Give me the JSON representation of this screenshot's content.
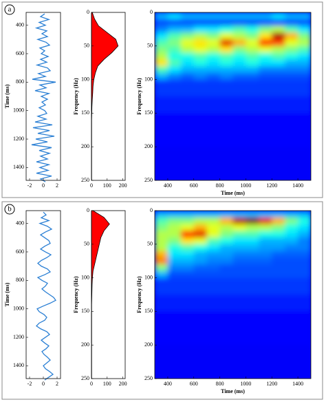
{
  "panels": [
    {
      "label": "a"
    },
    {
      "label": "b"
    }
  ],
  "chart_data": [
    {
      "type": "line",
      "ylabel": "Time (ms)",
      "color": "#2a7fd4",
      "time": [
        320,
        340,
        360,
        380,
        400,
        420,
        440,
        460,
        480,
        500,
        520,
        540,
        560,
        580,
        600,
        620,
        640,
        660,
        680,
        700,
        720,
        740,
        760,
        780,
        800,
        820,
        840,
        860,
        880,
        900,
        920,
        940,
        960,
        980,
        1000,
        1020,
        1040,
        1060,
        1080,
        1100,
        1120,
        1140,
        1160,
        1180,
        1200,
        1220,
        1240,
        1260,
        1280,
        1300,
        1320,
        1340,
        1360,
        1380,
        1400,
        1420,
        1440,
        1460,
        1480,
        1500
      ],
      "values": [
        0.2,
        -0.4,
        0.8,
        -0.6,
        0.3,
        -1.0,
        0.5,
        -0.2,
        0.6,
        -0.8,
        0.4,
        0.9,
        -0.5,
        0.2,
        -0.3,
        0.7,
        -0.4,
        0.5,
        -0.9,
        0.6,
        1.0,
        -0.7,
        0.3,
        -1.6,
        1.8,
        -0.5,
        0.4,
        -1.2,
        0.8,
        -0.3,
        0.6,
        -0.2,
        0.3,
        -0.6,
        0.2,
        0.5,
        -0.8,
        0.4,
        -1.2,
        1.3,
        -1.5,
        0.9,
        -0.8,
        1.6,
        -1.1,
        0.6,
        -1.7,
        1.2,
        -0.6,
        0.9,
        -0.4,
        0.6,
        -1.0,
        0.8,
        -0.5,
        0.7,
        -1.0,
        1.2,
        -0.4,
        0.3
      ],
      "xlim": [
        -2.5,
        2.5
      ],
      "xticks": [
        -2,
        0,
        2
      ],
      "ylim": [
        310,
        1490
      ],
      "yticks": [
        400,
        600,
        800,
        1000,
        1200,
        1400
      ],
      "y_inverted": true
    },
    {
      "type": "area",
      "ylabel": "Frequency (Hz)",
      "color": "#ff0000",
      "edge_color": "#000000",
      "frequency": [
        0,
        10,
        20,
        30,
        40,
        50,
        60,
        70,
        80,
        90,
        100,
        110,
        120,
        130,
        140,
        150,
        160,
        170,
        180,
        190,
        200,
        210,
        220,
        230,
        240,
        250
      ],
      "values": [
        5,
        20,
        45,
        100,
        155,
        170,
        130,
        80,
        40,
        25,
        15,
        10,
        8,
        5,
        3,
        2,
        1,
        1,
        1,
        1,
        1,
        1,
        1,
        1,
        1,
        1
      ],
      "xlim": [
        0,
        215
      ],
      "xticks": [
        0,
        100,
        200
      ],
      "ylim": [
        0,
        250
      ],
      "yticks": [
        0,
        50,
        100,
        150,
        200,
        250
      ],
      "y_inverted": true
    },
    {
      "type": "heatmap",
      "xlabel": "Time (ms)",
      "ylabel": "Frequency (Hz)",
      "colormap": "jet",
      "x_edges": [
        300,
        400,
        500,
        600,
        700,
        800,
        900,
        1000,
        1100,
        1200,
        1300,
        1400,
        1500
      ],
      "y_edges": [
        0,
        10,
        20,
        30,
        40,
        50,
        60,
        70,
        80,
        90,
        100,
        125,
        150,
        200,
        250
      ],
      "z": [
        [
          0.3,
          0.35,
          0.3,
          0.3,
          0.3,
          0.3,
          0.3,
          0.3,
          0.3,
          0.35,
          0.3,
          0.3
        ],
        [
          0.2,
          0.2,
          0.2,
          0.2,
          0.2,
          0.2,
          0.2,
          0.2,
          0.2,
          0.2,
          0.2,
          0.2
        ],
        [
          0.25,
          0.3,
          0.3,
          0.35,
          0.35,
          0.4,
          0.45,
          0.4,
          0.5,
          0.55,
          0.45,
          0.35
        ],
        [
          0.35,
          0.45,
          0.5,
          0.55,
          0.5,
          0.6,
          0.55,
          0.5,
          0.65,
          0.95,
          0.7,
          0.5
        ],
        [
          0.45,
          0.5,
          0.6,
          0.65,
          0.6,
          0.9,
          0.7,
          0.6,
          0.85,
          0.8,
          0.6,
          0.55
        ],
        [
          0.5,
          0.45,
          0.55,
          0.6,
          0.55,
          0.65,
          0.5,
          0.55,
          0.6,
          0.55,
          0.5,
          0.45
        ],
        [
          0.55,
          0.4,
          0.4,
          0.45,
          0.4,
          0.45,
          0.4,
          0.45,
          0.4,
          0.45,
          0.4,
          0.35
        ],
        [
          0.65,
          0.45,
          0.35,
          0.4,
          0.35,
          0.4,
          0.35,
          0.4,
          0.35,
          0.35,
          0.3,
          0.3
        ],
        [
          0.45,
          0.35,
          0.3,
          0.3,
          0.3,
          0.3,
          0.3,
          0.3,
          0.25,
          0.25,
          0.25,
          0.25
        ],
        [
          0.3,
          0.25,
          0.22,
          0.25,
          0.22,
          0.25,
          0.22,
          0.22,
          0.2,
          0.2,
          0.2,
          0.2
        ],
        [
          0.18,
          0.18,
          0.18,
          0.18,
          0.18,
          0.18,
          0.18,
          0.18,
          0.18,
          0.18,
          0.18,
          0.18
        ],
        [
          0.15,
          0.15,
          0.15,
          0.15,
          0.15,
          0.15,
          0.15,
          0.15,
          0.15,
          0.15,
          0.15,
          0.15
        ],
        [
          0.13,
          0.13,
          0.13,
          0.13,
          0.13,
          0.13,
          0.13,
          0.13,
          0.13,
          0.13,
          0.13,
          0.13
        ],
        [
          0.12,
          0.12,
          0.12,
          0.12,
          0.12,
          0.12,
          0.12,
          0.12,
          0.12,
          0.12,
          0.12,
          0.12
        ]
      ],
      "xlim": [
        300,
        1500
      ],
      "xticks": [
        400,
        600,
        800,
        1000,
        1200,
        1400
      ],
      "ylim": [
        0,
        250
      ],
      "yticks": [
        0,
        50,
        100,
        150,
        200,
        250
      ],
      "y_inverted": true
    },
    {
      "type": "line",
      "ylabel": "Time (ms)",
      "color": "#2a7fd4",
      "time": [
        320,
        340,
        360,
        380,
        400,
        420,
        440,
        460,
        480,
        500,
        520,
        540,
        560,
        580,
        600,
        620,
        640,
        660,
        680,
        700,
        720,
        740,
        760,
        780,
        800,
        820,
        840,
        860,
        880,
        900,
        920,
        940,
        960,
        980,
        1000,
        1020,
        1040,
        1060,
        1080,
        1100,
        1120,
        1140,
        1160,
        1180,
        1200,
        1220,
        1240,
        1260,
        1280,
        1300,
        1320,
        1340,
        1360,
        1380,
        1400,
        1420,
        1440,
        1460,
        1480,
        1500
      ],
      "values": [
        0.0,
        0.4,
        -0.3,
        0.8,
        -0.5,
        0.6,
        1.2,
        0.3,
        -0.4,
        0.2,
        0.8,
        1.0,
        0.2,
        -0.4,
        0.3,
        1.1,
        0.5,
        -0.3,
        -0.8,
        -0.3,
        0.6,
        1.0,
        0.2,
        -0.8,
        -0.2,
        0.6,
        0.3,
        -0.2,
        0.3,
        0.9,
        1.5,
        1.8,
        1.0,
        0.0,
        -0.9,
        -0.6,
        0.1,
        0.5,
        0.2,
        -0.6,
        -1.0,
        -0.4,
        0.5,
        0.9,
        0.3,
        -0.3,
        0.2,
        0.8,
        0.4,
        -0.2,
        0.1,
        0.6,
        1.0,
        0.5,
        0.0,
        0.3,
        0.9,
        1.4,
        0.8,
        0.2
      ],
      "xlim": [
        -2.5,
        2.5
      ],
      "xticks": [
        -2,
        0,
        2
      ],
      "ylim": [
        310,
        1490
      ],
      "yticks": [
        400,
        600,
        800,
        1000,
        1200,
        1400
      ],
      "y_inverted": true
    },
    {
      "type": "area",
      "ylabel": "Frequency (Hz)",
      "color": "#ff0000",
      "edge_color": "#000000",
      "frequency": [
        0,
        10,
        20,
        30,
        40,
        50,
        60,
        70,
        80,
        90,
        100,
        110,
        120,
        130,
        140,
        150,
        160,
        170,
        180,
        190,
        200,
        210,
        220,
        230,
        240,
        250
      ],
      "values": [
        10,
        80,
        115,
        80,
        60,
        50,
        40,
        30,
        20,
        10,
        6,
        4,
        3,
        2,
        1,
        1,
        1,
        1,
        1,
        1,
        1,
        1,
        1,
        1,
        1,
        1
      ],
      "xlim": [
        0,
        215
      ],
      "xticks": [
        0,
        100,
        200
      ],
      "ylim": [
        0,
        250
      ],
      "yticks": [
        0,
        50,
        100,
        150,
        200,
        250
      ],
      "y_inverted": true
    },
    {
      "type": "heatmap",
      "xlabel": "Time (ms)",
      "ylabel": "Frequency (Hz)",
      "colormap": "jet",
      "x_edges": [
        300,
        400,
        500,
        600,
        700,
        800,
        900,
        1000,
        1100,
        1200,
        1300,
        1400,
        1500
      ],
      "y_edges": [
        0,
        10,
        20,
        30,
        40,
        50,
        60,
        70,
        80,
        90,
        100,
        125,
        150,
        200,
        250
      ],
      "z": [
        [
          0.3,
          0.3,
          0.3,
          0.3,
          0.3,
          0.3,
          0.3,
          0.3,
          0.3,
          0.3,
          0.3,
          0.3
        ],
        [
          0.45,
          0.5,
          0.5,
          0.55,
          0.55,
          0.7,
          0.95,
          1.0,
          0.9,
          0.7,
          0.5,
          0.4
        ],
        [
          0.5,
          0.55,
          0.6,
          0.7,
          0.6,
          0.55,
          0.6,
          0.55,
          0.55,
          0.5,
          0.4,
          0.35
        ],
        [
          0.55,
          0.55,
          0.85,
          0.9,
          0.6,
          0.5,
          0.45,
          0.45,
          0.4,
          0.4,
          0.35,
          0.3
        ],
        [
          0.55,
          0.5,
          0.65,
          0.6,
          0.45,
          0.4,
          0.35,
          0.35,
          0.3,
          0.3,
          0.3,
          0.25
        ],
        [
          0.55,
          0.4,
          0.45,
          0.4,
          0.35,
          0.3,
          0.3,
          0.3,
          0.28,
          0.28,
          0.25,
          0.25
        ],
        [
          0.7,
          0.35,
          0.35,
          0.3,
          0.28,
          0.28,
          0.25,
          0.25,
          0.25,
          0.22,
          0.22,
          0.22
        ],
        [
          0.75,
          0.3,
          0.3,
          0.28,
          0.25,
          0.25,
          0.22,
          0.22,
          0.22,
          0.2,
          0.2,
          0.2
        ],
        [
          0.5,
          0.25,
          0.25,
          0.22,
          0.22,
          0.2,
          0.2,
          0.2,
          0.2,
          0.2,
          0.2,
          0.2
        ],
        [
          0.3,
          0.2,
          0.2,
          0.2,
          0.2,
          0.2,
          0.2,
          0.2,
          0.2,
          0.2,
          0.2,
          0.2
        ],
        [
          0.18,
          0.18,
          0.18,
          0.18,
          0.18,
          0.18,
          0.18,
          0.18,
          0.18,
          0.18,
          0.18,
          0.18
        ],
        [
          0.15,
          0.15,
          0.15,
          0.15,
          0.15,
          0.15,
          0.15,
          0.15,
          0.15,
          0.15,
          0.15,
          0.15
        ],
        [
          0.13,
          0.13,
          0.13,
          0.13,
          0.13,
          0.13,
          0.13,
          0.13,
          0.13,
          0.13,
          0.13,
          0.13
        ],
        [
          0.12,
          0.12,
          0.12,
          0.12,
          0.12,
          0.12,
          0.12,
          0.12,
          0.12,
          0.12,
          0.12,
          0.12
        ]
      ],
      "xlim": [
        300,
        1500
      ],
      "xticks": [
        400,
        600,
        800,
        1000,
        1200,
        1400
      ],
      "ylim": [
        0,
        250
      ],
      "yticks": [
        0,
        50,
        100,
        150,
        200,
        250
      ],
      "y_inverted": true
    }
  ]
}
